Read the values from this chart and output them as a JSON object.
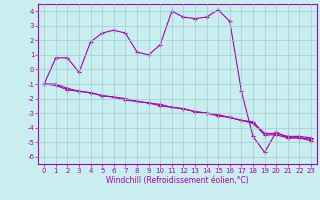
{
  "xlabel": "Windchill (Refroidissement éolien,°C)",
  "xlim": [
    -0.5,
    23.5
  ],
  "ylim": [
    -6.5,
    4.5
  ],
  "xticks": [
    0,
    1,
    2,
    3,
    4,
    5,
    6,
    7,
    8,
    9,
    10,
    11,
    12,
    13,
    14,
    15,
    16,
    17,
    18,
    19,
    20,
    21,
    22,
    23
  ],
  "yticks": [
    -6,
    -5,
    -4,
    -3,
    -2,
    -1,
    0,
    1,
    2,
    3,
    4
  ],
  "color": "#aa00aa",
  "bg_color": "#c8eef0",
  "grid_color": "#a0ccd0",
  "line1_x": [
    0,
    1,
    2,
    3,
    4,
    5,
    6,
    7,
    8,
    9,
    10,
    11,
    12,
    13,
    14,
    15,
    16,
    17,
    18,
    19,
    20,
    21,
    22,
    23
  ],
  "line1_y": [
    -1.0,
    0.8,
    0.8,
    -0.2,
    1.9,
    2.5,
    2.7,
    2.5,
    1.2,
    1.0,
    1.7,
    4.0,
    3.6,
    3.5,
    3.6,
    4.1,
    3.3,
    -1.5,
    -4.6,
    -5.7,
    -4.3,
    -4.7,
    -4.7,
    -4.9
  ],
  "line2_x": [
    0,
    1,
    2,
    3,
    4,
    5,
    6,
    7,
    8,
    9,
    10,
    11,
    12,
    13,
    14,
    15,
    16,
    17,
    18,
    19,
    20,
    21,
    22,
    23
  ],
  "line2_y": [
    -1.0,
    -1.1,
    -1.4,
    -1.5,
    -1.6,
    -1.8,
    -1.9,
    -2.1,
    -2.2,
    -2.3,
    -2.5,
    -2.6,
    -2.7,
    -2.9,
    -3.0,
    -3.2,
    -3.3,
    -3.5,
    -3.7,
    -4.5,
    -4.5,
    -4.7,
    -4.7,
    -4.8
  ],
  "line3_x": [
    0,
    1,
    2,
    3,
    4,
    5,
    6,
    7,
    8,
    9,
    10,
    11,
    12,
    13,
    14,
    15,
    16,
    17,
    18,
    19,
    20,
    21,
    22,
    23
  ],
  "line3_y": [
    -1.0,
    -1.0,
    -1.3,
    -1.5,
    -1.6,
    -1.8,
    -1.9,
    -2.0,
    -2.2,
    -2.3,
    -2.4,
    -2.6,
    -2.7,
    -2.9,
    -3.0,
    -3.1,
    -3.3,
    -3.5,
    -3.6,
    -4.4,
    -4.4,
    -4.6,
    -4.6,
    -4.7
  ],
  "lw": 0.8,
  "marker_size": 3,
  "tick_fontsize": 5,
  "label_fontsize": 5.5
}
